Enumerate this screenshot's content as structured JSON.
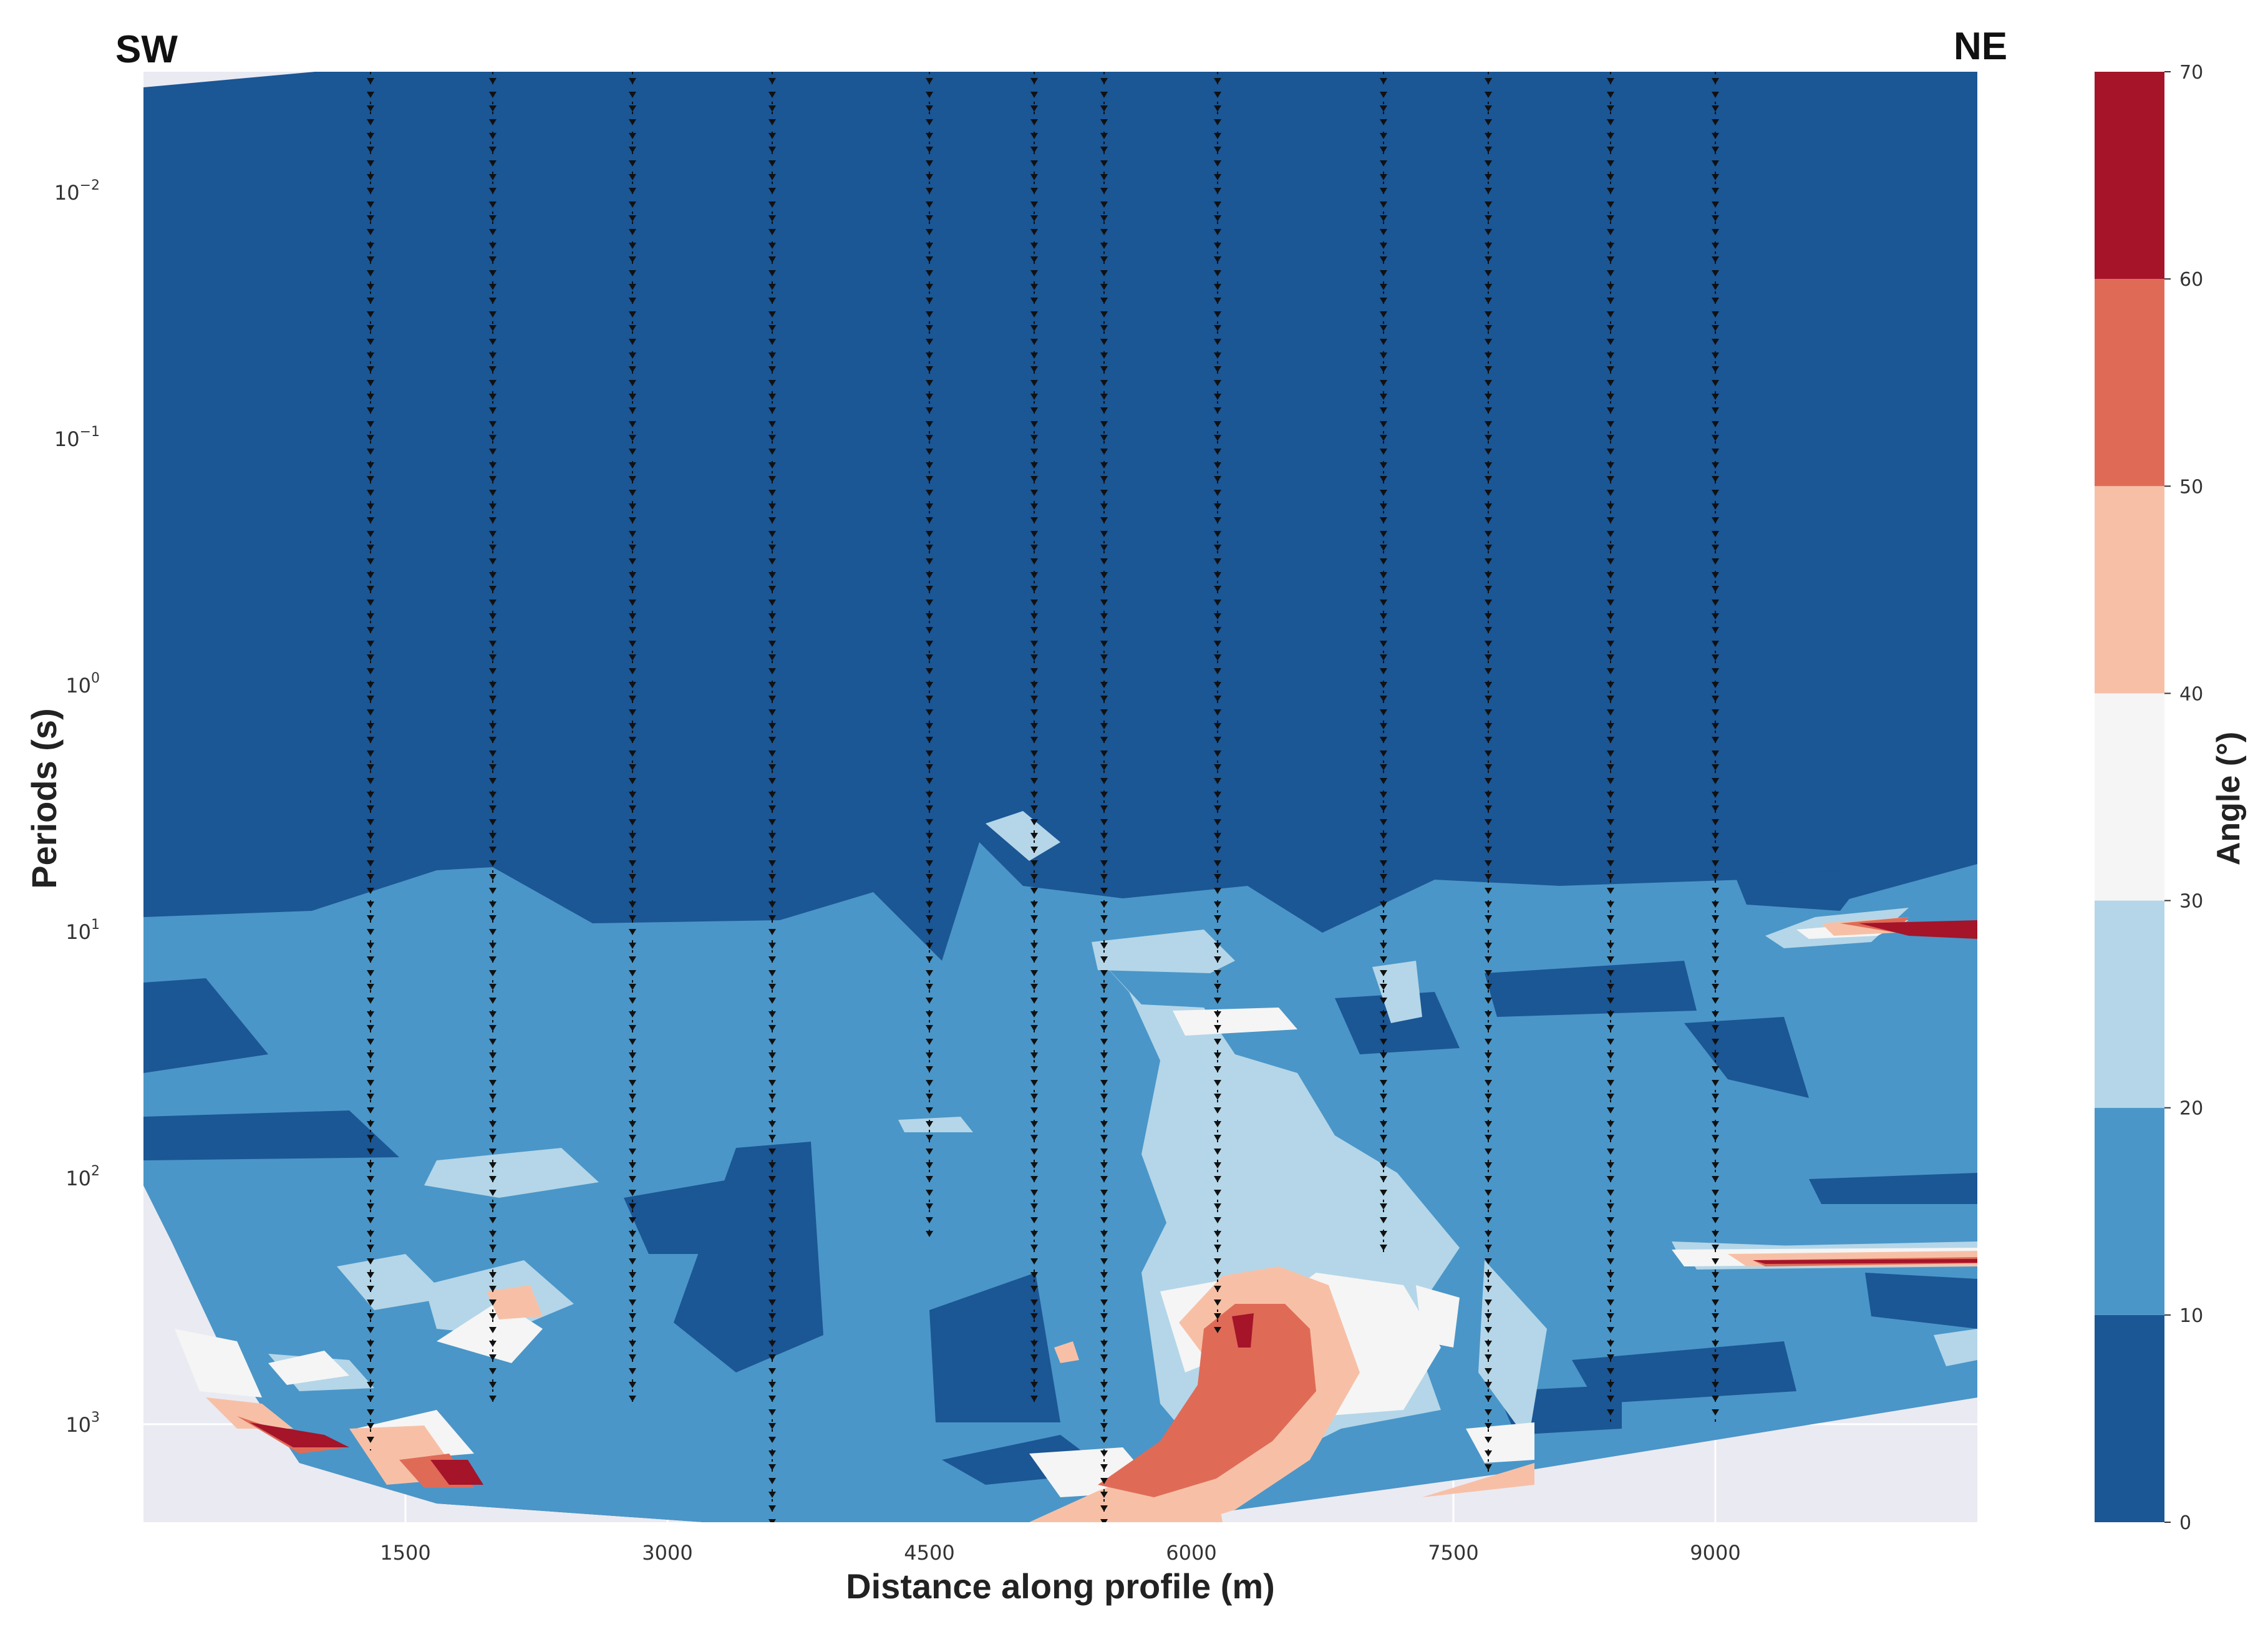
{
  "chart_data": {
    "type": "heatmap",
    "subtype": "filled-contour",
    "corner_labels": {
      "left": "SW",
      "right": "NE"
    },
    "xlabel": "Distance along profile (m)",
    "ylabel": "Periods (s)",
    "xlim": [
      0,
      10500
    ],
    "xticks": [
      1500,
      3000,
      4500,
      6000,
      7500,
      9000
    ],
    "x_tick_labels": [
      "1500",
      "3000",
      "4500",
      "6000",
      "7500",
      "9000"
    ],
    "ylim": [
      0.00325,
      2500
    ],
    "yscale": "log",
    "y_inverted": true,
    "yticks": [
      0.01,
      0.1,
      1,
      10,
      100,
      1000
    ],
    "y_tick_labels": [
      {
        "base": "10",
        "exp": "−2"
      },
      {
        "base": "10",
        "exp": "−1"
      },
      {
        "base": "10",
        "exp": "0"
      },
      {
        "base": "10",
        "exp": "1"
      },
      {
        "base": "10",
        "exp": "2"
      },
      {
        "base": "10",
        "exp": "3"
      }
    ],
    "stations_x": [
      1300,
      2000,
      2800,
      3600,
      4500,
      5100,
      5500,
      6150,
      7100,
      7700,
      8400,
      9000
    ],
    "colorbar": {
      "label": "Angle (°)",
      "levels": [
        0,
        10,
        20,
        30,
        40,
        50,
        60,
        70
      ],
      "tick_labels": [
        "0",
        "10",
        "20",
        "30",
        "40",
        "50",
        "60",
        "70"
      ],
      "colors": [
        "#1b5695",
        "#4a96c8",
        "#b4d6e8",
        "#f5f5f5",
        "#f7c0a6",
        "#df6b57",
        "#a51429"
      ]
    },
    "background_color": "#eaeaf2",
    "grid": true
  }
}
